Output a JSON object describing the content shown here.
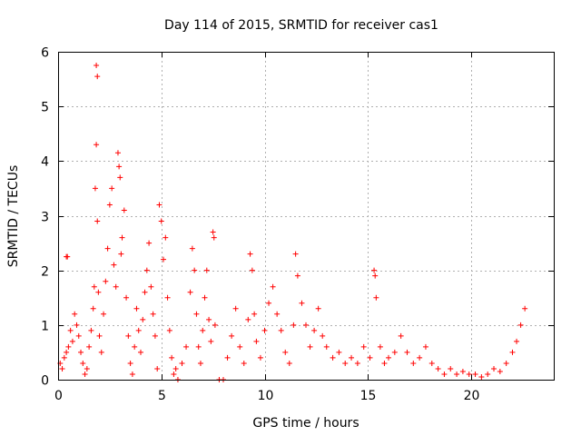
{
  "chart_data": {
    "type": "scatter",
    "title": "Day 114 of 2015, SRMTID for receiver cas1",
    "xlabel": "GPS time / hours",
    "ylabel": "SRMTID / TECUs",
    "xlim": [
      0,
      24
    ],
    "ylim": [
      0,
      6
    ],
    "xticks": [
      0,
      5,
      10,
      15,
      20
    ],
    "yticks": [
      0,
      1,
      2,
      3,
      4,
      5,
      6
    ],
    "x_tick_labels": [
      "0",
      "5",
      "10",
      "15",
      "20"
    ],
    "y_tick_labels": [
      "0",
      "1",
      "2",
      "3",
      "4",
      "5",
      "6"
    ],
    "grid": true,
    "marker": "+",
    "color": "#ff0000",
    "series": [
      {
        "name": "SRMTID",
        "points": [
          [
            0.1,
            0.3
          ],
          [
            0.2,
            0.2
          ],
          [
            0.3,
            0.4
          ],
          [
            0.4,
            0.5
          ],
          [
            0.4,
            2.25
          ],
          [
            0.45,
            2.25
          ],
          [
            0.5,
            0.6
          ],
          [
            0.6,
            0.9
          ],
          [
            0.7,
            0.7
          ],
          [
            0.8,
            1.2
          ],
          [
            0.9,
            1.0
          ],
          [
            1.0,
            0.8
          ],
          [
            1.1,
            0.5
          ],
          [
            1.2,
            0.3
          ],
          [
            1.3,
            0.1
          ],
          [
            1.4,
            0.2
          ],
          [
            1.5,
            0.6
          ],
          [
            1.6,
            0.9
          ],
          [
            1.7,
            1.3
          ],
          [
            1.75,
            1.7
          ],
          [
            1.8,
            3.5
          ],
          [
            1.85,
            5.75
          ],
          [
            1.9,
            5.55
          ],
          [
            1.85,
            4.3
          ],
          [
            1.9,
            2.9
          ],
          [
            1.95,
            1.6
          ],
          [
            2.0,
            0.8
          ],
          [
            2.1,
            0.5
          ],
          [
            2.2,
            1.2
          ],
          [
            2.3,
            1.8
          ],
          [
            2.4,
            2.4
          ],
          [
            2.5,
            3.2
          ],
          [
            2.6,
            3.5
          ],
          [
            2.7,
            2.1
          ],
          [
            2.8,
            1.7
          ],
          [
            2.9,
            4.15
          ],
          [
            2.95,
            3.9
          ],
          [
            3.0,
            3.7
          ],
          [
            3.05,
            2.3
          ],
          [
            3.1,
            2.6
          ],
          [
            3.2,
            3.1
          ],
          [
            3.3,
            1.5
          ],
          [
            3.4,
            0.8
          ],
          [
            3.5,
            0.3
          ],
          [
            3.6,
            0.1
          ],
          [
            3.7,
            0.6
          ],
          [
            3.8,
            1.3
          ],
          [
            3.9,
            0.9
          ],
          [
            4.0,
            0.5
          ],
          [
            4.1,
            1.1
          ],
          [
            4.2,
            1.6
          ],
          [
            4.3,
            2.0
          ],
          [
            4.4,
            2.5
          ],
          [
            4.5,
            1.7
          ],
          [
            4.6,
            1.2
          ],
          [
            4.7,
            0.8
          ],
          [
            4.8,
            0.2
          ],
          [
            4.9,
            3.2
          ],
          [
            5.0,
            2.9
          ],
          [
            5.1,
            2.2
          ],
          [
            5.2,
            2.6
          ],
          [
            5.3,
            1.5
          ],
          [
            5.4,
            0.9
          ],
          [
            5.5,
            0.4
          ],
          [
            5.6,
            0.1
          ],
          [
            5.7,
            0.2
          ],
          [
            5.8,
            0.0
          ],
          [
            6.0,
            0.3
          ],
          [
            6.2,
            0.6
          ],
          [
            6.4,
            1.6
          ],
          [
            6.5,
            2.4
          ],
          [
            6.6,
            2.0
          ],
          [
            6.7,
            1.2
          ],
          [
            6.8,
            0.6
          ],
          [
            6.9,
            0.3
          ],
          [
            7.0,
            0.9
          ],
          [
            7.1,
            1.5
          ],
          [
            7.2,
            2.0
          ],
          [
            7.3,
            1.1
          ],
          [
            7.4,
            0.7
          ],
          [
            7.5,
            2.7
          ],
          [
            7.55,
            2.6
          ],
          [
            7.6,
            1.0
          ],
          [
            7.8,
            0.0
          ],
          [
            8.0,
            0.0
          ],
          [
            8.2,
            0.4
          ],
          [
            8.4,
            0.8
          ],
          [
            8.6,
            1.3
          ],
          [
            8.8,
            0.6
          ],
          [
            9.0,
            0.3
          ],
          [
            9.2,
            1.1
          ],
          [
            9.3,
            2.3
          ],
          [
            9.4,
            2.0
          ],
          [
            9.5,
            1.2
          ],
          [
            9.6,
            0.7
          ],
          [
            9.8,
            0.4
          ],
          [
            10.0,
            0.9
          ],
          [
            10.2,
            1.4
          ],
          [
            10.4,
            1.7
          ],
          [
            10.6,
            1.2
          ],
          [
            10.8,
            0.9
          ],
          [
            11.0,
            0.5
          ],
          [
            11.2,
            0.3
          ],
          [
            11.4,
            1.0
          ],
          [
            11.5,
            2.3
          ],
          [
            11.6,
            1.9
          ],
          [
            11.8,
            1.4
          ],
          [
            12.0,
            1.0
          ],
          [
            12.2,
            0.6
          ],
          [
            12.4,
            0.9
          ],
          [
            12.6,
            1.3
          ],
          [
            12.8,
            0.8
          ],
          [
            13.0,
            0.6
          ],
          [
            13.3,
            0.4
          ],
          [
            13.6,
            0.5
          ],
          [
            13.9,
            0.3
          ],
          [
            14.2,
            0.4
          ],
          [
            14.5,
            0.3
          ],
          [
            14.8,
            0.6
          ],
          [
            15.1,
            0.4
          ],
          [
            15.3,
            2.0
          ],
          [
            15.35,
            1.9
          ],
          [
            15.4,
            1.5
          ],
          [
            15.6,
            0.6
          ],
          [
            15.8,
            0.3
          ],
          [
            16.0,
            0.4
          ],
          [
            16.3,
            0.5
          ],
          [
            16.6,
            0.8
          ],
          [
            16.9,
            0.5
          ],
          [
            17.2,
            0.3
          ],
          [
            17.5,
            0.4
          ],
          [
            17.8,
            0.6
          ],
          [
            18.1,
            0.3
          ],
          [
            18.4,
            0.2
          ],
          [
            18.7,
            0.1
          ],
          [
            19.0,
            0.2
          ],
          [
            19.3,
            0.1
          ],
          [
            19.6,
            0.15
          ],
          [
            19.9,
            0.1
          ],
          [
            20.2,
            0.1
          ],
          [
            20.5,
            0.05
          ],
          [
            20.8,
            0.1
          ],
          [
            21.1,
            0.2
          ],
          [
            21.4,
            0.15
          ],
          [
            21.7,
            0.3
          ],
          [
            22.0,
            0.5
          ],
          [
            22.2,
            0.7
          ],
          [
            22.4,
            1.0
          ],
          [
            22.6,
            1.3
          ]
        ]
      }
    ]
  }
}
